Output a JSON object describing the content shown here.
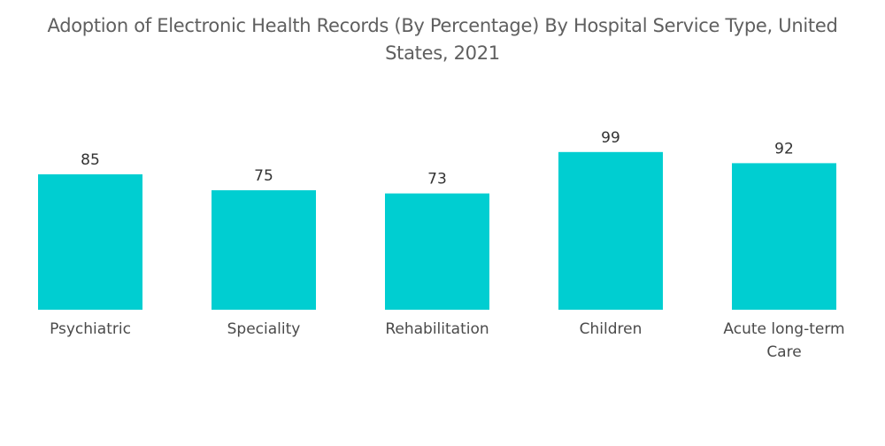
{
  "chart_data": {
    "type": "bar",
    "title": "Adoption of Electronic Health Records (By Percentage) By Hospital Service Type, United States, 2021",
    "categories": [
      "Psychiatric",
      "Speciality",
      "Rehabilitation",
      "Children",
      "Acute long-term Care"
    ],
    "category_lines": [
      [
        "Psychiatric"
      ],
      [
        "Speciality"
      ],
      [
        "Rehabilitation"
      ],
      [
        "Children"
      ],
      [
        "Acute long-term",
        "Care"
      ]
    ],
    "values": [
      85,
      75,
      73,
      99,
      92
    ],
    "xlabel": "",
    "ylabel": "",
    "ylim": [
      0,
      100
    ],
    "grid": false,
    "legend": "none",
    "bar_color": "#00CED1",
    "data_labels": true
  }
}
